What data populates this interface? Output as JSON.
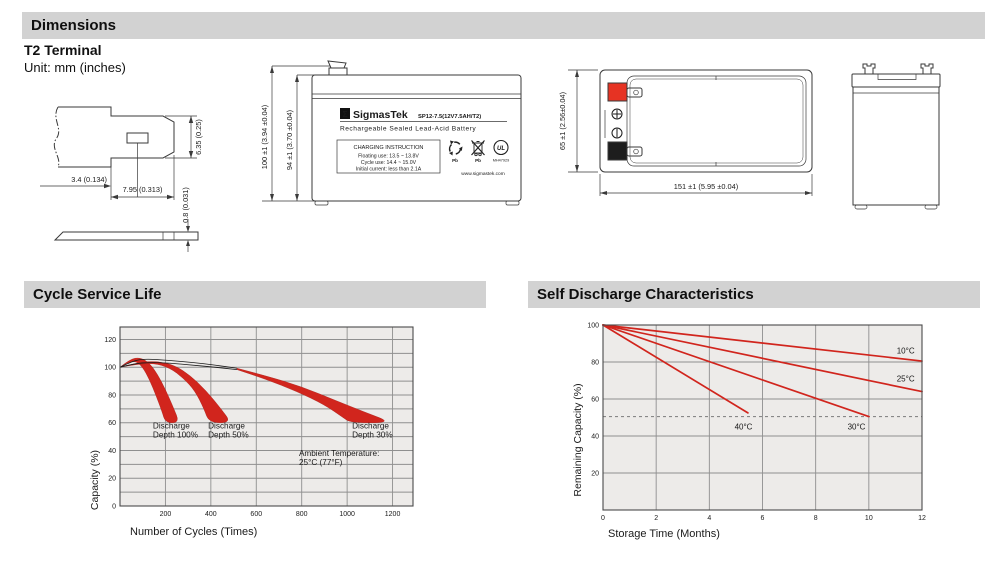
{
  "theme": {
    "header_bg": "#d2d2d2",
    "line": "#3a3a3a",
    "red": "#d1251d",
    "band_edge": "#a91e18",
    "terminal_red": "#e63323",
    "terminal_black": "#1d1d1d",
    "plot_bg": "#edebe9",
    "grid": "#8f8f8f",
    "plot_border": "#4a4a4a",
    "curve": "#1a1a1a",
    "dash": "#888888"
  },
  "sections": {
    "dimensions_title": "Dimensions",
    "cycle_title": "Cycle Service Life",
    "self_title": "Self Discharge Characteristics"
  },
  "dimensions": {
    "subtitle": "T2 Terminal",
    "unit_note": "Unit: mm (inches)",
    "terminal_detail": {
      "dim_offset": "3.4 (0.134)",
      "dim_length": "7.95 (0.313)",
      "dim_width": "6.35 (0.25)",
      "dim_thickness": "0.8 (0.031)"
    },
    "front_view": {
      "dim_overall_height": "100 ±1 (3.94 ±0.04)",
      "dim_case_height": "94 ±1 (3.70 ±0.04)"
    },
    "top_view": {
      "dim_width": "65 ±1 (2.56±0.04)",
      "dim_length": "151 ±1 (5.95 ±0.04)"
    },
    "label": {
      "logo_glyph": "Σ",
      "brand": "SigmasTek",
      "model": "SP12-7.5(12V7.5AH/T2)",
      "type_line": "Rechargeable Sealed Lead-Acid Battery",
      "charging_title": "CHARGING INSTRUCTION",
      "charging_lines": [
        "Floating use: 13.5 ~ 13.8V",
        "Cycle use: 14.4 ~ 15.0V",
        "Initial current: less than 2.1A"
      ],
      "pb_recycle": "Pb",
      "pb_bin": "Pb",
      "ul_mark": "UL",
      "ul_file": "MH47929",
      "website": "www.sigmastek.com"
    }
  },
  "chart_data": [
    {
      "type": "area",
      "title": "Cycle Service Life",
      "xlabel": "Number of Cycles (Times)",
      "ylabel": "Capacity (%)",
      "xlim": [
        0,
        1290
      ],
      "ylim": [
        0,
        129
      ],
      "grid": true,
      "x_grid": [
        200,
        400,
        600,
        800,
        1000,
        1200
      ],
      "y_grid_step": 10,
      "x_ticks": [
        200,
        400,
        600,
        800,
        1000,
        1200
      ],
      "y_ticks": [
        0,
        20,
        40,
        60,
        80,
        100,
        120
      ],
      "bands": [
        {
          "name": "Discharge Depth 100%",
          "upper": [
            [
              0,
              100
            ],
            [
              45,
              106
            ],
            [
              90,
              107
            ],
            [
              130,
              103
            ],
            [
              165,
              95
            ],
            [
              200,
              84
            ],
            [
              235,
              71
            ],
            [
              262,
              60
            ]
          ],
          "lower": [
            [
              0,
              100
            ],
            [
              35,
              103.5
            ],
            [
              70,
              104.5
            ],
            [
              100,
              100
            ],
            [
              130,
              91
            ],
            [
              160,
              79
            ],
            [
              185,
              68
            ],
            [
              200,
              60
            ]
          ]
        },
        {
          "name": "Discharge Depth 50%",
          "upper": [
            [
              0,
              100
            ],
            [
              80,
              103.5
            ],
            [
              160,
              104.5
            ],
            [
              240,
              101.5
            ],
            [
              310,
              94
            ],
            [
              380,
              83
            ],
            [
              445,
              70
            ],
            [
              490,
              60
            ]
          ],
          "lower": [
            [
              0,
              100
            ],
            [
              70,
              102
            ],
            [
              150,
              103
            ],
            [
              220,
              99.5
            ],
            [
              280,
              92
            ],
            [
              330,
              83
            ],
            [
              370,
              70
            ],
            [
              392,
              60
            ]
          ]
        },
        {
          "name": "Discharge Depth 30%",
          "upper": [
            [
              515,
              99.3
            ],
            [
              650,
              93.5
            ],
            [
              800,
              86
            ],
            [
              950,
              76
            ],
            [
              1080,
              67.5
            ],
            [
              1200,
              60
            ]
          ],
          "lower": [
            [
              515,
              98.3
            ],
            [
              640,
              91.5
            ],
            [
              780,
              82.5
            ],
            [
              900,
              73
            ],
            [
              980,
              64
            ],
            [
              1015,
              60
            ]
          ]
        }
      ],
      "curves": [
        [
          [
            0,
            100
          ],
          [
            60,
            105
          ],
          [
            120,
            106
          ],
          [
            210,
            105
          ],
          [
            320,
            103.5
          ],
          [
            420,
            101.5
          ],
          [
            515,
            99.3
          ]
        ],
        [
          [
            0,
            100
          ],
          [
            60,
            102.5
          ],
          [
            130,
            103.5
          ],
          [
            220,
            103
          ],
          [
            320,
            101.5
          ],
          [
            420,
            100
          ],
          [
            515,
            98.3
          ]
        ]
      ],
      "annotations": [
        {
          "lines": [
            "Discharge",
            "Depth 100%"
          ],
          "x": 145,
          "y": 56
        },
        {
          "lines": [
            "Discharge",
            "Depth 50%"
          ],
          "x": 388,
          "y": 56
        },
        {
          "lines": [
            "Discharge",
            "Depth 30%"
          ],
          "x": 1022,
          "y": 56
        },
        {
          "lines": [
            "Ambient Temperature:",
            "25°C (77°F)"
          ],
          "x": 788,
          "y": 36
        }
      ]
    },
    {
      "type": "line",
      "title": "Self Discharge Characteristics",
      "xlabel": "Storage Time (Months)",
      "ylabel": "Remaining Capacity (%)",
      "xlim": [
        0,
        12
      ],
      "ylim": [
        0,
        100
      ],
      "grid": true,
      "x_grid": [
        2,
        4,
        6,
        8,
        10
      ],
      "y_grid_step": 20,
      "x_ticks": [
        0,
        2,
        4,
        6,
        8,
        10,
        12
      ],
      "y_ticks": [
        20,
        40,
        60,
        80,
        100
      ],
      "series": [
        {
          "name": "10°C",
          "points": [
            [
              0,
              100
            ],
            [
              12,
              80.5
            ]
          ],
          "label": {
            "x": 11.05,
            "y": 84.5
          }
        },
        {
          "name": "25°C",
          "points": [
            [
              0,
              100
            ],
            [
              12,
              64
            ]
          ],
          "label": {
            "x": 11.05,
            "y": 69.5
          }
        },
        {
          "name": "30°C",
          "points": [
            [
              0,
              100
            ],
            [
              10,
              50.5
            ]
          ],
          "label": {
            "x": 9.2,
            "y": 43.5
          }
        },
        {
          "name": "40°C",
          "points": [
            [
              0,
              100
            ],
            [
              5.45,
              52.5
            ]
          ],
          "label": {
            "x": 4.95,
            "y": 43.5
          }
        }
      ],
      "dashed_line_y": 50.5
    }
  ]
}
